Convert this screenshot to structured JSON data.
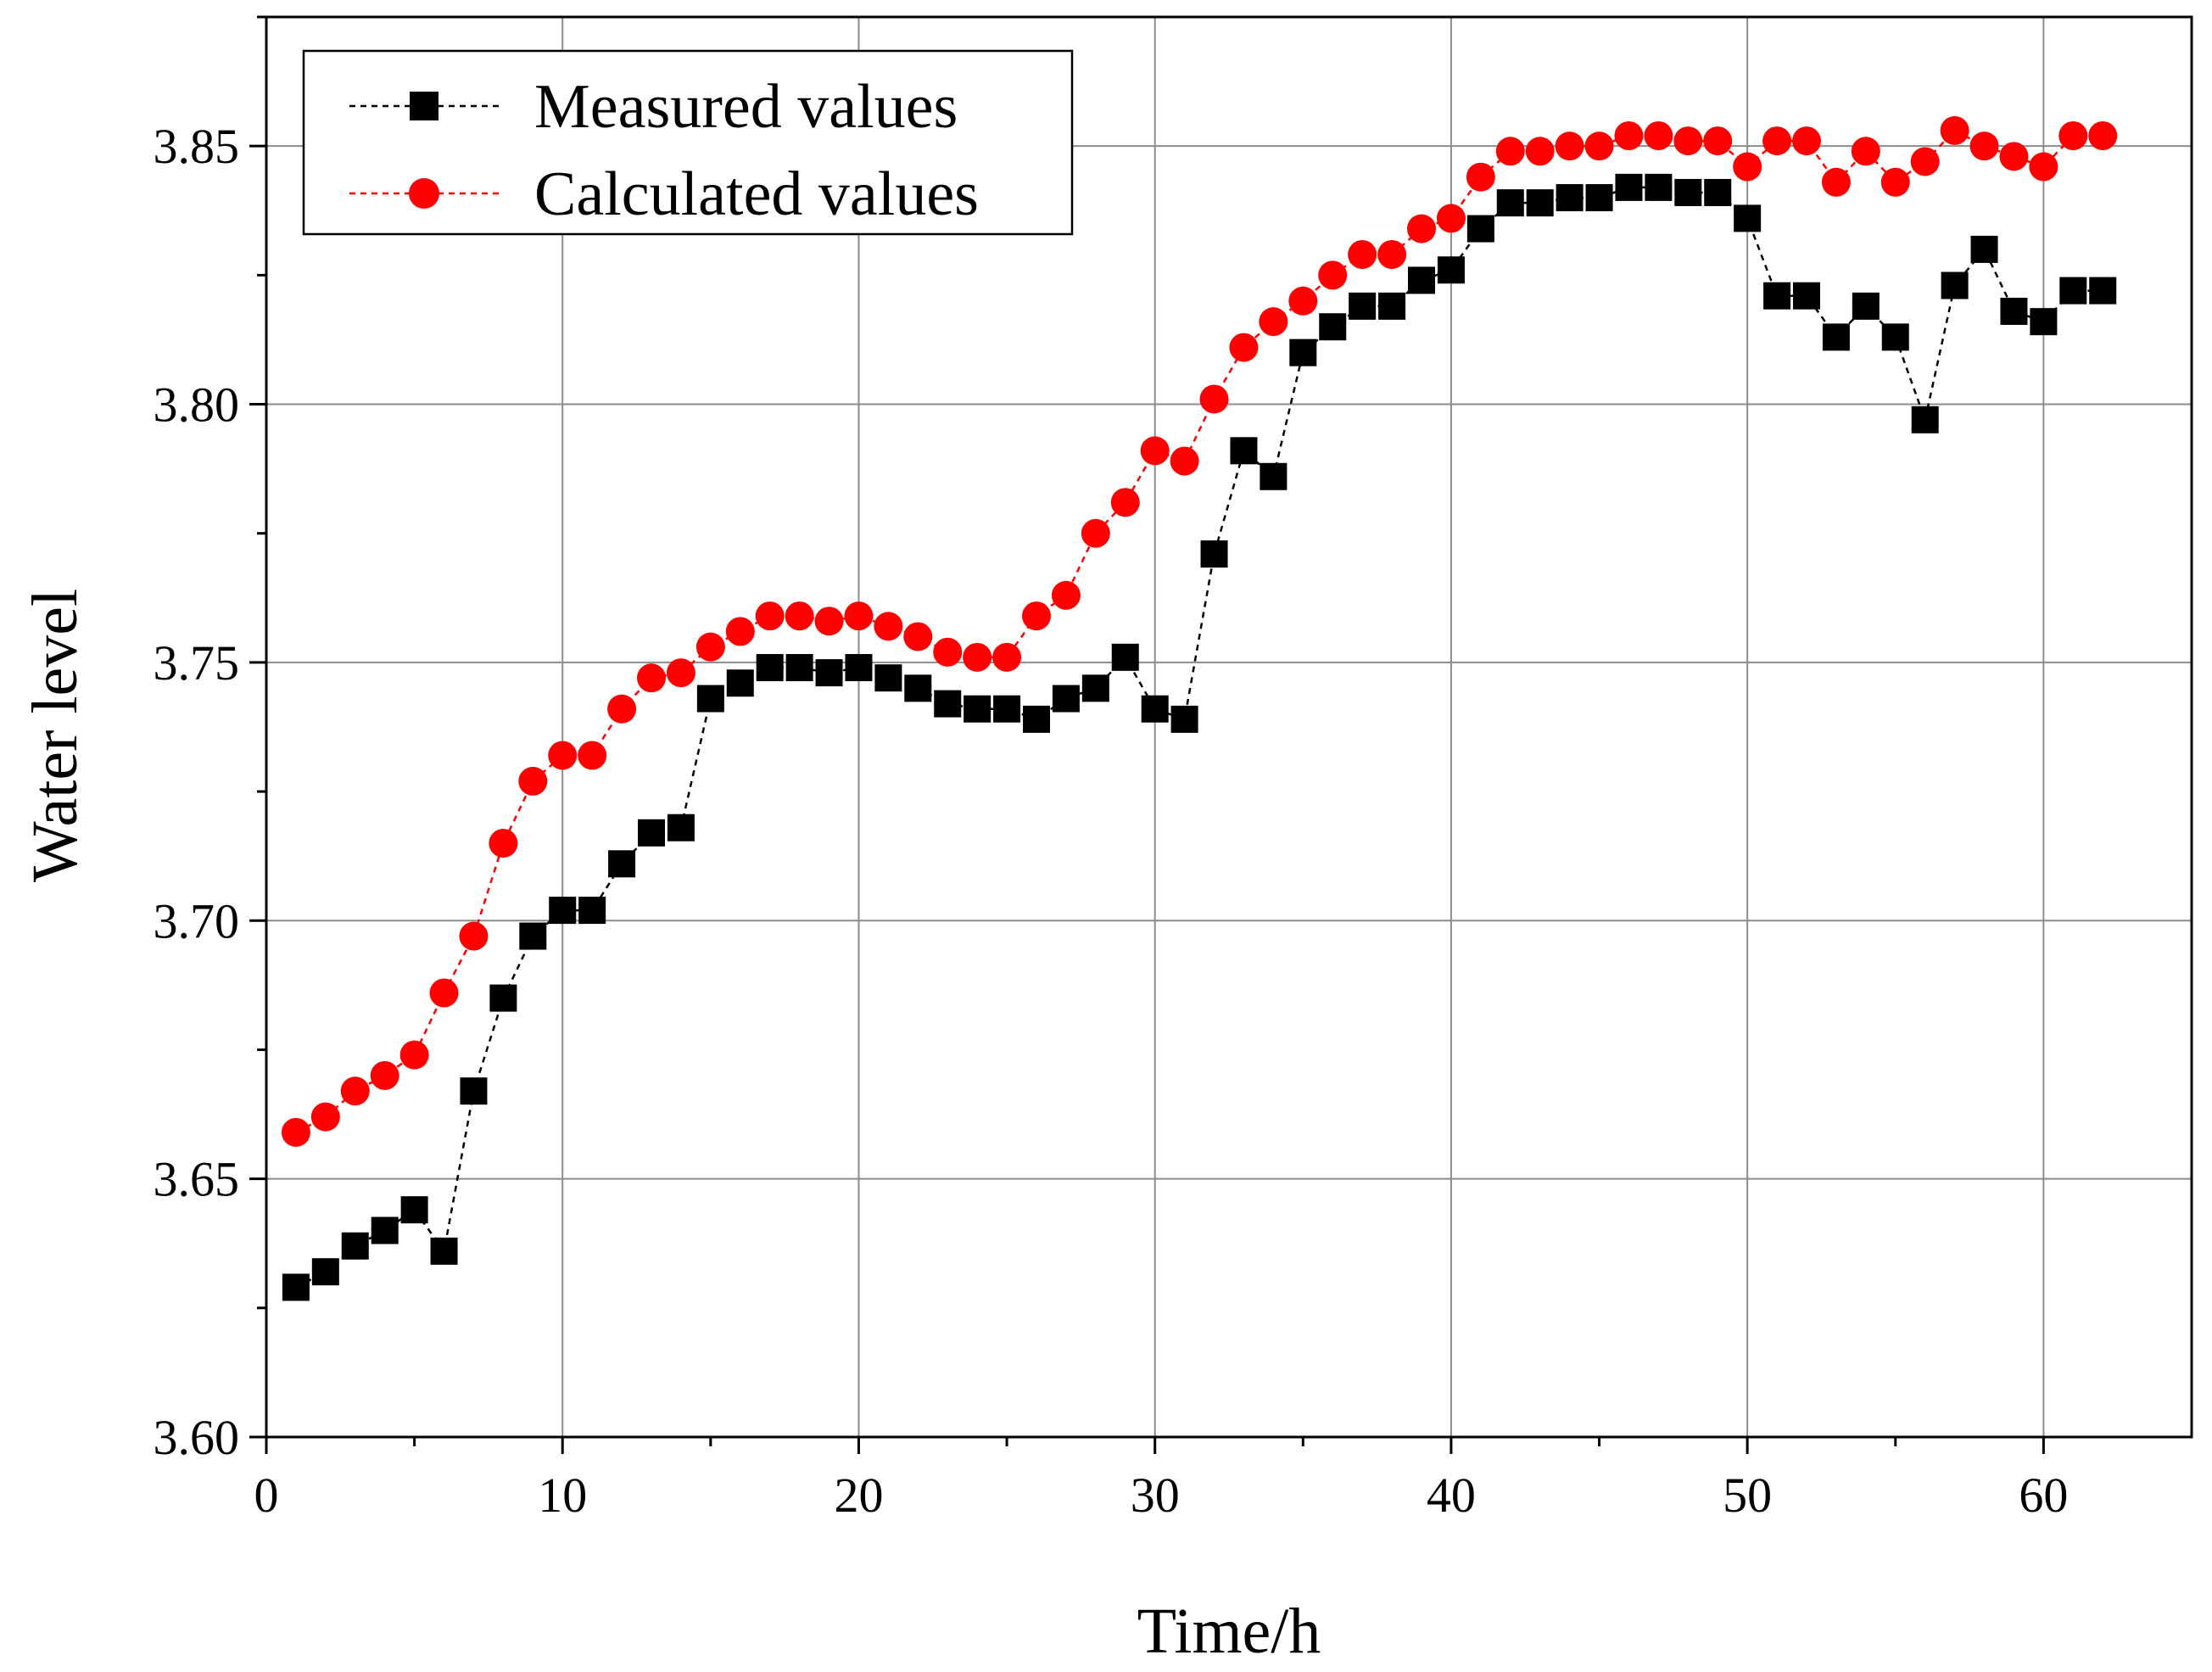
{
  "chart_data": {
    "type": "scatter",
    "title": "",
    "xlabel": "Time/h",
    "ylabel": "Water level",
    "xlim": [
      0,
      65
    ],
    "ylim": [
      3.6,
      3.875
    ],
    "x_ticks": [
      0,
      10,
      20,
      30,
      40,
      50,
      60
    ],
    "x_tick_labels": [
      "0",
      "10",
      "20",
      "30",
      "40",
      "50",
      "60"
    ],
    "y_ticks": [
      3.6,
      3.65,
      3.7,
      3.75,
      3.8,
      3.85
    ],
    "y_tick_labels": [
      "3.60",
      "3.65",
      "3.70",
      "3.75",
      "3.80",
      "3.85"
    ],
    "grid": true,
    "legend_position": "top-left",
    "series": [
      {
        "name": "Measured values",
        "marker": "square",
        "color": "#000000",
        "line_style": "dashed",
        "x": [
          1,
          2,
          3,
          4,
          5,
          6,
          7,
          8,
          9,
          10,
          11,
          12,
          13,
          14,
          15,
          16,
          17,
          18,
          19,
          20,
          21,
          22,
          23,
          24,
          25,
          26,
          27,
          28,
          29,
          30,
          31,
          32,
          33,
          34,
          35,
          36,
          37,
          38,
          39,
          40,
          41,
          42,
          43,
          44,
          45,
          46,
          47,
          48,
          49,
          50,
          51,
          52,
          53,
          54,
          55,
          56,
          57,
          58,
          59,
          60,
          61,
          62
        ],
        "values": [
          3.629,
          3.632,
          3.637,
          3.64,
          3.644,
          3.636,
          3.667,
          3.685,
          3.697,
          3.702,
          3.702,
          3.711,
          3.717,
          3.718,
          3.743,
          3.746,
          3.749,
          3.749,
          3.748,
          3.749,
          3.747,
          3.745,
          3.742,
          3.741,
          3.741,
          3.739,
          3.743,
          3.745,
          3.751,
          3.741,
          3.739,
          3.771,
          3.791,
          3.786,
          3.81,
          3.815,
          3.819,
          3.819,
          3.824,
          3.826,
          3.834,
          3.839,
          3.839,
          3.84,
          3.84,
          3.842,
          3.842,
          3.841,
          3.841,
          3.836,
          3.821,
          3.821,
          3.813,
          3.819,
          3.813,
          3.797,
          3.823,
          3.83,
          3.818,
          3.816,
          3.822,
          3.822
        ]
      },
      {
        "name": "Calculated values",
        "marker": "circle",
        "color": "#ff0000",
        "line_style": "dashed",
        "x": [
          1,
          2,
          3,
          4,
          5,
          6,
          7,
          8,
          9,
          10,
          11,
          12,
          13,
          14,
          15,
          16,
          17,
          18,
          19,
          20,
          21,
          22,
          23,
          24,
          25,
          26,
          27,
          28,
          29,
          30,
          31,
          32,
          33,
          34,
          35,
          36,
          37,
          38,
          39,
          40,
          41,
          42,
          43,
          44,
          45,
          46,
          47,
          48,
          49,
          50,
          51,
          52,
          53,
          54,
          55,
          56,
          57,
          58,
          59,
          60,
          61,
          62
        ],
        "values": [
          3.659,
          3.662,
          3.667,
          3.67,
          3.674,
          3.686,
          3.697,
          3.715,
          3.727,
          3.732,
          3.732,
          3.741,
          3.747,
          3.748,
          3.753,
          3.756,
          3.759,
          3.759,
          3.758,
          3.759,
          3.757,
          3.755,
          3.752,
          3.751,
          3.751,
          3.759,
          3.763,
          3.775,
          3.781,
          3.791,
          3.789,
          3.801,
          3.811,
          3.816,
          3.82,
          3.825,
          3.829,
          3.829,
          3.834,
          3.836,
          3.844,
          3.849,
          3.849,
          3.85,
          3.85,
          3.852,
          3.852,
          3.851,
          3.851,
          3.846,
          3.851,
          3.851,
          3.843,
          3.849,
          3.843,
          3.847,
          3.853,
          3.85,
          3.848,
          3.846,
          3.852,
          3.852
        ]
      }
    ]
  }
}
